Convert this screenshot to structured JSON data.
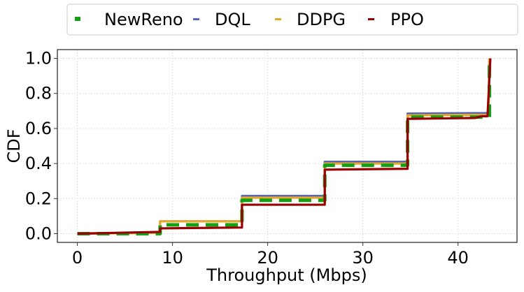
{
  "chart_data": {
    "type": "line",
    "title": "",
    "xlabel": "Throughput (Mbps)",
    "ylabel": "CDF",
    "xlim": [
      -2.1,
      46.2
    ],
    "ylim": [
      -0.05,
      1.05
    ],
    "xticks": [
      0,
      10,
      20,
      30,
      40
    ],
    "xtick_labels": [
      "0",
      "10",
      "20",
      "30",
      "40"
    ],
    "yticks": [
      0.0,
      0.2,
      0.4,
      0.6,
      0.8,
      1.0
    ],
    "ytick_labels": [
      "0.0",
      "0.2",
      "0.4",
      "0.6",
      "0.8",
      "1.0"
    ],
    "grid": true,
    "legend_position": "top, outside, horizontal",
    "series": [
      {
        "name": "NewReno",
        "color": "#14a014",
        "style": "dashed",
        "x": [
          0,
          8.7,
          8.7,
          17.3,
          17.3,
          26.0,
          26.0,
          34.7,
          34.7,
          43.3,
          43.3
        ],
        "y": [
          0,
          0,
          0.05,
          0.05,
          0.19,
          0.19,
          0.39,
          0.39,
          0.665,
          0.665,
          1.0
        ]
      },
      {
        "name": "DQL",
        "color": "#5566bb",
        "style": "solid",
        "x": [
          0,
          8.7,
          8.7,
          17.3,
          17.3,
          26.0,
          26.0,
          34.7,
          34.7,
          43.2,
          43.3
        ],
        "y": [
          0,
          0.005,
          0.07,
          0.07,
          0.215,
          0.215,
          0.41,
          0.41,
          0.685,
          0.688,
          1.0
        ]
      },
      {
        "name": "DDPG",
        "color": "#e6a82a",
        "style": "solid",
        "x": [
          0,
          8.7,
          8.7,
          17.3,
          17.3,
          26.0,
          26.0,
          34.7,
          34.7,
          43.2,
          43.3
        ],
        "y": [
          0,
          0.005,
          0.07,
          0.07,
          0.205,
          0.205,
          0.4,
          0.4,
          0.675,
          0.678,
          1.0
        ]
      },
      {
        "name": "PPO",
        "color": "#990000",
        "style": "solid",
        "x": [
          0,
          8.7,
          8.7,
          17.3,
          17.3,
          26.0,
          26.0,
          34.7,
          34.7,
          41.8,
          42.5,
          43.1,
          43.4
        ],
        "y": [
          0,
          0.01,
          0.03,
          0.035,
          0.165,
          0.165,
          0.365,
          0.37,
          0.655,
          0.66,
          0.67,
          0.67,
          1.0
        ]
      }
    ]
  }
}
